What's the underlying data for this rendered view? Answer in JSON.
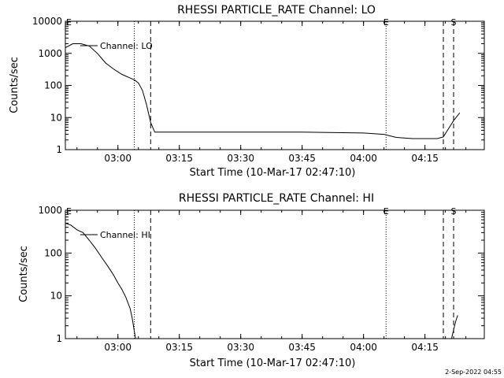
{
  "timestamp": "2-Sep-2022 04:55",
  "chart_data": [
    {
      "type": "line",
      "title": "RHESSI PARTICLE_RATE Channel: LO",
      "xlabel": "Start Time (10-Mar-17 02:47:10)",
      "ylabel": "Counts/sec",
      "y_scale": "log",
      "xlim": [
        "02:47:10",
        "04:29:30"
      ],
      "ylim": [
        1,
        10000
      ],
      "x_ticks": [
        "03:00",
        "03:15",
        "03:30",
        "03:45",
        "04:00",
        "04:15"
      ],
      "y_ticks": [
        "1",
        "10",
        "100",
        "1000",
        "10000"
      ],
      "legend": {
        "label": "Channel: LO",
        "placement": "top-left"
      },
      "markers": [
        {
          "time": "03:04:00",
          "style": "dotted",
          "label": ""
        },
        {
          "time": "03:08:00",
          "style": "dashed",
          "label": ""
        },
        {
          "time": "04:05:30",
          "style": "dotted",
          "label": "E"
        },
        {
          "time": "04:19:30",
          "style": "dashed",
          "label": ""
        },
        {
          "time": "04:22:00",
          "style": "dashed",
          "label": "S"
        }
      ],
      "edge_labels": [
        "E"
      ],
      "series": [
        {
          "name": "Channel: LO",
          "points": [
            [
              "02:47:10",
              1500
            ],
            [
              "02:49:00",
              2000
            ],
            [
              "02:51:00",
              2000
            ],
            [
              "02:53:00",
              1700
            ],
            [
              "02:55:00",
              1000
            ],
            [
              "02:57:00",
              500
            ],
            [
              "02:59:00",
              320
            ],
            [
              "03:01:00",
              220
            ],
            [
              "03:03:00",
              170
            ],
            [
              "03:04:00",
              150
            ],
            [
              "03:05:00",
              120
            ],
            [
              "03:06:00",
              70
            ],
            [
              "03:07:00",
              25
            ],
            [
              "03:08:00",
              7
            ],
            [
              "03:09:00",
              3.5
            ],
            [
              "03:15:00",
              3.5
            ],
            [
              "03:30:00",
              3.5
            ],
            [
              "03:45:00",
              3.5
            ],
            [
              "04:00:00",
              3.3
            ],
            [
              "04:05:00",
              3
            ],
            [
              "04:08:00",
              2.4
            ],
            [
              "04:12:00",
              2.2
            ],
            [
              "04:15:00",
              2.2
            ],
            [
              "04:18:00",
              2.2
            ],
            [
              "04:19:30",
              2.5
            ],
            [
              "04:20:30",
              4
            ],
            [
              "04:22:00",
              8
            ],
            [
              "04:23:30",
              14
            ]
          ]
        }
      ]
    },
    {
      "type": "line",
      "title": "RHESSI PARTICLE_RATE Channel: HI",
      "xlabel": "Start Time (10-Mar-17 02:47:10)",
      "ylabel": "Counts/sec",
      "y_scale": "log",
      "xlim": [
        "02:47:10",
        "04:29:30"
      ],
      "ylim": [
        1,
        1000
      ],
      "x_ticks": [
        "03:00",
        "03:15",
        "03:30",
        "03:45",
        "04:00",
        "04:15"
      ],
      "y_ticks": [
        "1",
        "10",
        "100",
        "1000"
      ],
      "legend": {
        "label": "Channel: HI",
        "placement": "top-left"
      },
      "markers": [
        {
          "time": "03:04:00",
          "style": "dotted",
          "label": ""
        },
        {
          "time": "03:08:00",
          "style": "dashed",
          "label": ""
        },
        {
          "time": "04:05:30",
          "style": "dotted",
          "label": "E"
        },
        {
          "time": "04:19:30",
          "style": "dashed",
          "label": ""
        },
        {
          "time": "04:22:00",
          "style": "dashed",
          "label": "S"
        }
      ],
      "edge_labels": [
        "E"
      ],
      "series": [
        {
          "name": "Channel: HI",
          "segments": [
            [
              [
                "02:47:10",
                500
              ],
              [
                "02:48:30",
                450
              ],
              [
                "02:50:00",
                350
              ],
              [
                "02:51:30",
                300
              ],
              [
                "02:53:00",
                200
              ],
              [
                "02:54:30",
                130
              ],
              [
                "02:56:00",
                80
              ],
              [
                "02:57:30",
                50
              ],
              [
                "02:59:00",
                30
              ],
              [
                "03:00:00",
                20
              ],
              [
                "03:01:00",
                14
              ],
              [
                "03:02:00",
                9
              ],
              [
                "03:03:00",
                5
              ],
              [
                "03:03:30",
                3
              ],
              [
                "03:04:00",
                1.5
              ],
              [
                "03:04:20",
                1
              ]
            ],
            [
              [
                "04:21:30",
                1
              ],
              [
                "04:22:00",
                1.6
              ],
              [
                "04:22:30",
                2.5
              ],
              [
                "04:23:00",
                3.5
              ]
            ]
          ]
        }
      ]
    }
  ]
}
